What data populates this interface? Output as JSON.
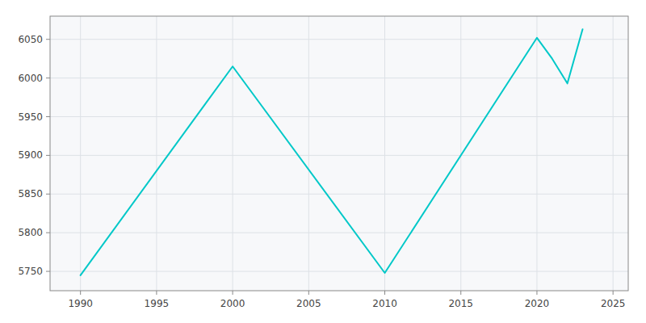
{
  "chart_data": {
    "type": "line",
    "x": [
      1990,
      2000,
      2010,
      2020,
      2021,
      2022,
      2023
    ],
    "values": [
      5745,
      6015,
      5748,
      6052,
      6025,
      5993,
      6063
    ],
    "color": "#00C8C8",
    "xlim": [
      1988,
      2026
    ],
    "ylim": [
      5725,
      6080
    ],
    "xticks": [
      1990,
      1995,
      2000,
      2005,
      2010,
      2015,
      2020,
      2025
    ],
    "yticks": [
      5750,
      5800,
      5850,
      5900,
      5950,
      6000,
      6050
    ],
    "grid": true
  }
}
